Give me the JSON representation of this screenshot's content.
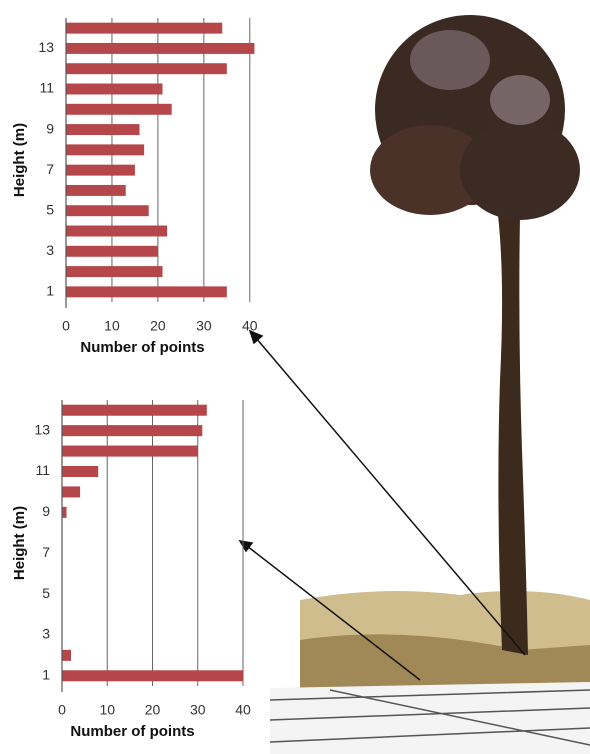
{
  "chart_data": [
    {
      "type": "bar",
      "orientation": "horizontal",
      "ylabel": "Height (m)",
      "xlabel": "Number of points",
      "categories": [
        1,
        null,
        3,
        null,
        5,
        null,
        7,
        null,
        9,
        null,
        11,
        null,
        13,
        null
      ],
      "values": [
        35,
        21,
        20,
        22,
        18,
        13,
        15,
        17,
        16,
        23,
        21,
        35,
        41,
        34
      ],
      "color": "#b5474b",
      "xlim": [
        0,
        42
      ],
      "xticks": [
        0,
        10,
        20,
        30,
        40
      ],
      "grid": true
    },
    {
      "type": "bar",
      "orientation": "horizontal",
      "ylabel": "Height (m)",
      "xlabel": "Number of points",
      "categories": [
        1,
        null,
        3,
        null,
        5,
        null,
        7,
        null,
        9,
        null,
        11,
        null,
        13,
        null
      ],
      "values": [
        40,
        2,
        0,
        0,
        0,
        0,
        0,
        0,
        1,
        4,
        8,
        30,
        31,
        32
      ],
      "color": "#b5474b",
      "xlim": [
        0,
        40
      ],
      "xticks": [
        0,
        10,
        20,
        30,
        40
      ],
      "grid": true
    }
  ]
}
